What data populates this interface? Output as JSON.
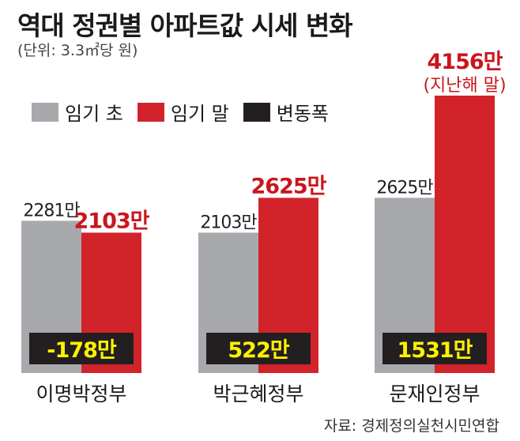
{
  "header": {
    "title": "역대 정권별 아파트값 시세 변화",
    "unit_note": "(단위: 3.3㎡당 원)"
  },
  "legend": [
    {
      "label": "임기 초",
      "color": "#a7a9ac"
    },
    {
      "label": "임기 말",
      "color": "#d2232a"
    },
    {
      "label": "변동폭",
      "color": "#231f20"
    }
  ],
  "chart_data": {
    "type": "bar",
    "categories": [
      "이명박정부",
      "박근혜정부",
      "문재인정부"
    ],
    "series": [
      {
        "name": "임기 초",
        "values": [
          2281,
          2103,
          2625
        ],
        "labels": [
          "2281만",
          "2103만",
          "2625만"
        ],
        "color": "#a7a9ac",
        "label_color": "#231f20"
      },
      {
        "name": "임기 말",
        "values": [
          2103,
          2625,
          4156
        ],
        "labels": [
          "2103만",
          "2625만",
          "4156만"
        ],
        "color": "#d2232a",
        "label_color": "#c8161d"
      },
      {
        "name": "변동폭",
        "values": [
          -178,
          522,
          1531
        ],
        "labels": [
          "-178만",
          "522만",
          "1531만"
        ],
        "color": "#231f20",
        "label_color": "#fff200"
      }
    ],
    "annotations": [
      {
        "category": "문재인정부",
        "series": "임기 말",
        "text": "(지난해 말)"
      }
    ],
    "ylim": [
      0,
      4500
    ],
    "grid": false,
    "legend_position": "top-left"
  },
  "footer": {
    "source": "자료: 경제정의실천시민연합"
  }
}
